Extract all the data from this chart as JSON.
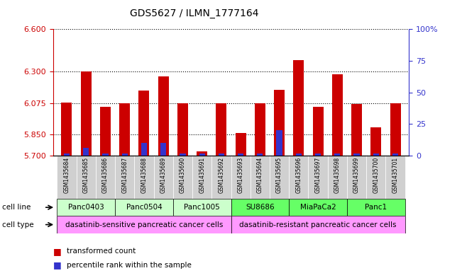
{
  "title": "GDS5627 / ILMN_1777164",
  "samples": [
    "GSM1435684",
    "GSM1435685",
    "GSM1435686",
    "GSM1435687",
    "GSM1435688",
    "GSM1435689",
    "GSM1435690",
    "GSM1435691",
    "GSM1435692",
    "GSM1435693",
    "GSM1435694",
    "GSM1435695",
    "GSM1435696",
    "GSM1435697",
    "GSM1435698",
    "GSM1435699",
    "GSM1435700",
    "GSM1435701"
  ],
  "red_values": [
    6.08,
    6.3,
    6.05,
    6.075,
    6.165,
    6.265,
    6.075,
    5.73,
    6.075,
    5.86,
    6.075,
    6.17,
    6.38,
    6.05,
    6.28,
    6.07,
    5.9,
    6.075
  ],
  "blue_values": [
    2,
    6,
    2,
    2,
    10,
    10,
    2,
    2,
    2,
    2,
    2,
    20,
    2,
    2,
    2,
    2,
    2,
    2
  ],
  "ylim_left": [
    5.7,
    6.6
  ],
  "ylim_right": [
    0,
    100
  ],
  "yticks_left": [
    5.7,
    5.85,
    6.075,
    6.3,
    6.6
  ],
  "yticks_right": [
    0,
    25,
    50,
    75,
    100
  ],
  "cell_lines": [
    {
      "name": "Panc0403",
      "start": 0,
      "end": 2,
      "color": "#ccffcc"
    },
    {
      "name": "Panc0504",
      "start": 3,
      "end": 5,
      "color": "#ccffcc"
    },
    {
      "name": "Panc1005",
      "start": 6,
      "end": 8,
      "color": "#ccffcc"
    },
    {
      "name": "SU8686",
      "start": 9,
      "end": 11,
      "color": "#66ff66"
    },
    {
      "name": "MiaPaCa2",
      "start": 12,
      "end": 14,
      "color": "#66ff66"
    },
    {
      "name": "Panc1",
      "start": 15,
      "end": 17,
      "color": "#66ff66"
    }
  ],
  "cell_types": [
    {
      "name": "dasatinib-sensitive pancreatic cancer cells",
      "start": 0,
      "end": 8,
      "color": "#ff99ff"
    },
    {
      "name": "dasatinib-resistant pancreatic cancer cells",
      "start": 9,
      "end": 17,
      "color": "#ff99ff"
    }
  ],
  "bar_color": "#cc0000",
  "blue_color": "#3333cc",
  "grid_color": "#000000",
  "left_axis_color": "#cc0000",
  "right_axis_color": "#3333cc",
  "xtick_bg_color": "#d0d0d0"
}
